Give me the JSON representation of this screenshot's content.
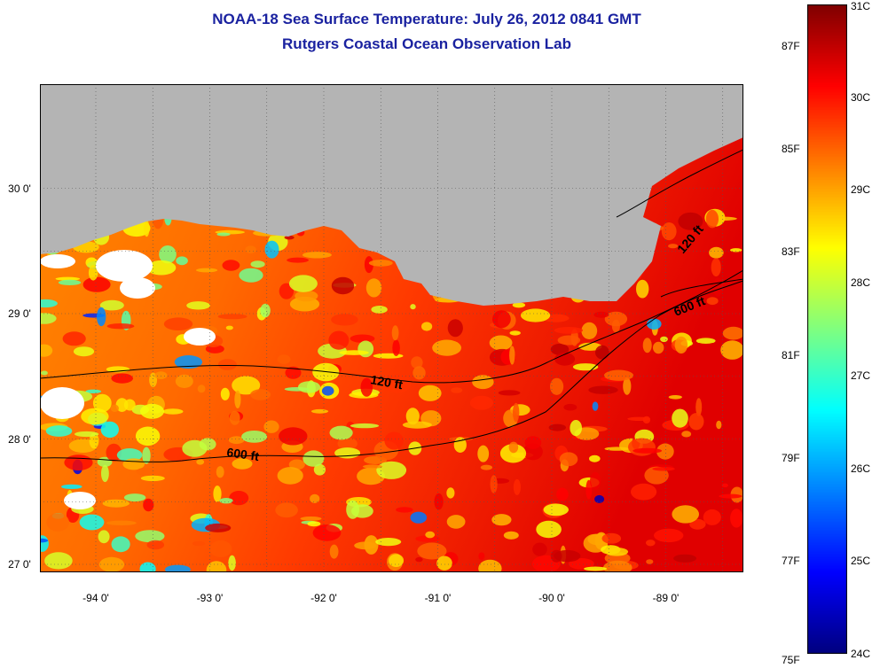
{
  "title_line1": "NOAA-18 Sea Surface Temperature:  July 26, 2012 0841 GMT",
  "title_line2": "Rutgers Coastal Ocean Observation Lab",
  "map": {
    "land_color": "#b4b4b4",
    "lat_labels": [
      {
        "lat": 30,
        "text": "30 0'"
      },
      {
        "lat": 29,
        "text": "29 0'"
      },
      {
        "lat": 28,
        "text": "28 0'"
      },
      {
        "lat": 27,
        "text": "27 0'"
      }
    ],
    "lon_labels": [
      {
        "lon": -94,
        "text": "-94 0'"
      },
      {
        "lon": -93,
        "text": "-93 0'"
      },
      {
        "lon": -92,
        "text": "-92 0'"
      },
      {
        "lon": -91,
        "text": "-91 0'"
      },
      {
        "lon": -90,
        "text": "-90 0'"
      },
      {
        "lon": -89,
        "text": "-89 0'"
      }
    ],
    "contours": [
      {
        "label": "120 ft",
        "color": "#000000"
      },
      {
        "label": "600 ft",
        "color": "#000000"
      },
      {
        "label": "120 ft",
        "color": "#000000"
      },
      {
        "label": "600 ft",
        "color": "#000000"
      }
    ]
  },
  "colorbar": {
    "min_c": 24,
    "max_c": 31,
    "colormap": "jet",
    "celsius_labels": [
      "31C",
      "30C",
      "29C",
      "28C",
      "27C",
      "26C",
      "25C",
      "24C"
    ],
    "fahrenheit_labels": [
      "87F",
      "85F",
      "83F",
      "81F",
      "79F",
      "77F",
      "75F"
    ]
  }
}
